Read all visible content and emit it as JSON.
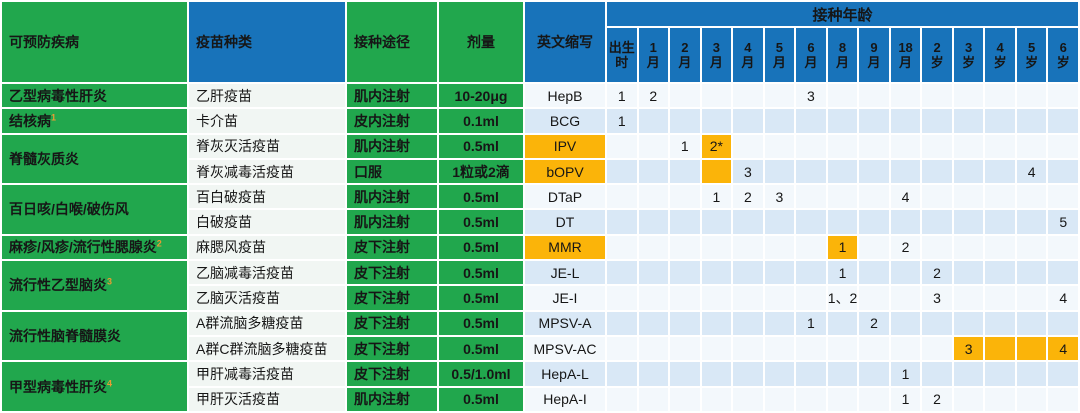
{
  "colors": {
    "green": "#21A74D",
    "blue": "#1873BA",
    "orange": "#FBB409",
    "sa": "#F3F8FC",
    "sb": "#D9E8F6",
    "vac": "#F1F6F3",
    "sup": "#E89B33"
  },
  "chart_data": {
    "type": "table",
    "headers": {
      "disease": "可预防疾病",
      "vaccine": "疫苗种类",
      "route": "接种途径",
      "dose": "剂量",
      "abbr": "英文缩写",
      "age_group": "接种年龄"
    },
    "age_columns": [
      "出生时",
      "1月",
      "2月",
      "3月",
      "4月",
      "5月",
      "6月",
      "8月",
      "9月",
      "18月",
      "2岁",
      "3岁",
      "4岁",
      "5岁",
      "6岁"
    ],
    "diseases": [
      {
        "name": "乙型病毒性肝炎",
        "sup": "",
        "span": 1
      },
      {
        "name": "结核病",
        "sup": "1",
        "span": 1
      },
      {
        "name": "脊髓灰质炎",
        "sup": "",
        "span": 2
      },
      {
        "name": "百日咳/白喉/破伤风",
        "sup": "",
        "span": 2
      },
      {
        "name": "麻疹/风疹/流行性腮腺炎",
        "sup": "2",
        "span": 1
      },
      {
        "name": "流行性乙型脑炎",
        "sup": "3",
        "span": 2
      },
      {
        "name": "流行性脑脊髓膜炎",
        "sup": "",
        "span": 2
      },
      {
        "name": "甲型病毒性肝炎",
        "sup": "4",
        "span": 2
      }
    ],
    "rows": [
      {
        "vaccine": "乙肝疫苗",
        "route": "肌内注射",
        "dose": "10-20μg",
        "abbr": "HepB",
        "abbr_hl": false,
        "cells": {
          "0": "1",
          "1": "2",
          "6": "3"
        },
        "hl_cells": []
      },
      {
        "vaccine": "卡介苗",
        "route": "皮内注射",
        "dose": "0.1ml",
        "abbr": "BCG",
        "abbr_hl": false,
        "cells": {
          "0": "1"
        },
        "hl_cells": []
      },
      {
        "vaccine": "脊灰灭活疫苗",
        "route": "肌内注射",
        "dose": "0.5ml",
        "abbr": "IPV",
        "abbr_hl": true,
        "cells": {
          "2": "1",
          "3": "2*"
        },
        "hl_cells": [
          3
        ]
      },
      {
        "vaccine": "脊灰减毒活疫苗",
        "route": "口服",
        "dose": "1粒或2滴",
        "abbr": "bOPV",
        "abbr_hl": true,
        "cells": {
          "4": "3",
          "13": "4"
        },
        "hl_cells": [
          3
        ]
      },
      {
        "vaccine": "百白破疫苗",
        "route": "肌内注射",
        "dose": "0.5ml",
        "abbr": "DTaP",
        "abbr_hl": false,
        "cells": {
          "3": "1",
          "4": "2",
          "5": "3",
          "9": "4"
        },
        "hl_cells": []
      },
      {
        "vaccine": "白破疫苗",
        "route": "肌内注射",
        "dose": "0.5ml",
        "abbr": "DT",
        "abbr_hl": false,
        "cells": {
          "14": "5"
        },
        "hl_cells": []
      },
      {
        "vaccine": "麻腮风疫苗",
        "route": "皮下注射",
        "dose": "0.5ml",
        "abbr": "MMR",
        "abbr_hl": true,
        "cells": {
          "7": "1",
          "9": "2"
        },
        "hl_cells": [
          7
        ]
      },
      {
        "vaccine": "乙脑减毒活疫苗",
        "route": "皮下注射",
        "dose": "0.5ml",
        "abbr": "JE-L",
        "abbr_hl": false,
        "cells": {
          "7": "1",
          "10": "2"
        },
        "hl_cells": []
      },
      {
        "vaccine": "乙脑灭活疫苗",
        "route": "皮下注射",
        "dose": "0.5ml",
        "abbr": "JE-I",
        "abbr_hl": false,
        "cells": {
          "7": "1、2",
          "10": "3",
          "14": "4"
        },
        "hl_cells": []
      },
      {
        "vaccine": "A群流脑多糖疫苗",
        "route": "皮下注射",
        "dose": "0.5ml",
        "abbr": "MPSV-A",
        "abbr_hl": false,
        "cells": {
          "6": "1",
          "8": "2"
        },
        "hl_cells": []
      },
      {
        "vaccine": "A群C群流脑多糖疫苗",
        "route": "皮下注射",
        "dose": "0.5ml",
        "abbr": "MPSV-AC",
        "abbr_hl": false,
        "cells": {
          "11": "3",
          "14": "4"
        },
        "hl_cells": [
          11,
          12,
          13,
          14
        ]
      },
      {
        "vaccine": "甲肝减毒活疫苗",
        "route": "皮下注射",
        "dose": "0.5/1.0ml",
        "abbr": "HepA-L",
        "abbr_hl": false,
        "cells": {
          "9": "1"
        },
        "hl_cells": []
      },
      {
        "vaccine": "甲肝灭活疫苗",
        "route": "肌内注射",
        "dose": "0.5ml",
        "abbr": "HepA-I",
        "abbr_hl": false,
        "cells": {
          "9": "1",
          "10": "2"
        },
        "hl_cells": []
      }
    ]
  }
}
